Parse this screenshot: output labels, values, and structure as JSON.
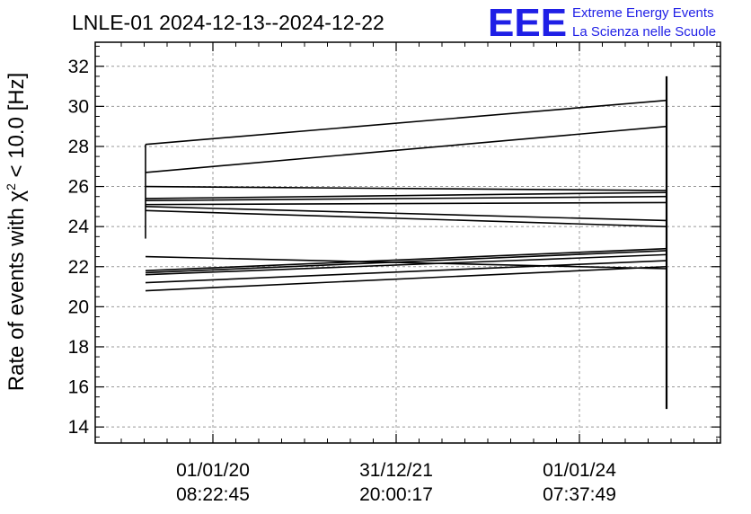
{
  "chart_data": {
    "type": "line",
    "title": "LNLE-01 2024-12-13--2024-12-22",
    "ylabel": {
      "prefix": "Rate of events with ",
      "chi": "χ",
      "sup": "2",
      "suffix": " < 10.0 [Hz]"
    },
    "xlabel": "",
    "ylim": [
      13.2,
      33.2
    ],
    "yticks": [
      14,
      16,
      18,
      20,
      22,
      24,
      26,
      28,
      30,
      32
    ],
    "xticks": [
      {
        "date": "01/01/20",
        "time": "08:22:45"
      },
      {
        "date": "31/12/21",
        "time": "20:00:17"
      },
      {
        "date": "01/01/24",
        "time": "07:37:49"
      }
    ],
    "grid": true,
    "logo": {
      "mark": "EEE",
      "line1": "Extreme Energy Events",
      "line2": "La Scienza nelle Scuole"
    },
    "series": [
      {
        "start": 28.1,
        "end": 30.3
      },
      {
        "start": 26.7,
        "end": 29.0
      },
      {
        "start": 26.0,
        "end": 25.8
      },
      {
        "start": 25.4,
        "end": 25.7
      },
      {
        "start": 25.3,
        "end": 25.5
      },
      {
        "start": 25.1,
        "end": 25.2
      },
      {
        "start": 25.0,
        "end": 24.3
      },
      {
        "start": 24.8,
        "end": 24.0
      },
      {
        "start": 22.5,
        "end": 21.9
      },
      {
        "start": 21.8,
        "end": 22.9
      },
      {
        "start": 21.7,
        "end": 22.8
      },
      {
        "start": 21.6,
        "end": 22.6
      },
      {
        "start": 21.2,
        "end": 22.3
      },
      {
        "start": 20.8,
        "end": 22.0
      }
    ],
    "start_spread": [
      23.4,
      28.1
    ],
    "end_spread": [
      14.9,
      31.5
    ]
  }
}
